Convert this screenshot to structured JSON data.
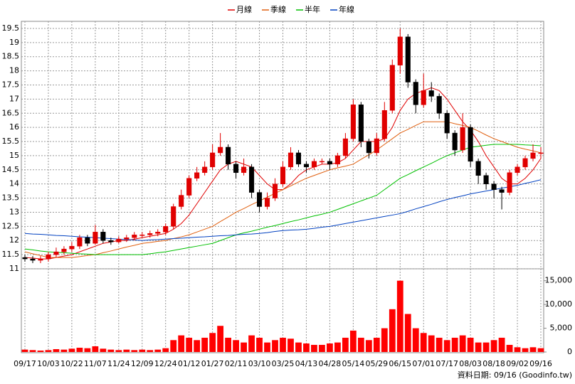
{
  "chart_data": {
    "type": "candlestick",
    "categories": [
      "09/17",
      null,
      null,
      "10/03",
      null,
      null,
      "10/22",
      null,
      null,
      "11/07",
      null,
      null,
      "11/24",
      null,
      null,
      "12/09",
      null,
      null,
      "12/24",
      null,
      null,
      "01/12",
      null,
      null,
      "01/27",
      null,
      null,
      "02/11",
      null,
      null,
      "03/10",
      null,
      null,
      "03/25",
      null,
      null,
      "04/13",
      null,
      null,
      "04/28",
      null,
      null,
      "05/14",
      null,
      null,
      "05/29",
      null,
      null,
      "06/15",
      null,
      null,
      "07/01",
      null,
      null,
      "07/17",
      null,
      null,
      "08/03",
      null,
      null,
      "08/18",
      null,
      null,
      "09/02",
      null,
      null,
      "09/16"
    ],
    "open": [
      11.4,
      11.35,
      11.3,
      11.35,
      11.5,
      11.6,
      11.7,
      11.8,
      12.1,
      11.9,
      12.3,
      12.0,
      11.95,
      12.05,
      12.1,
      12.2,
      12.2,
      12.25,
      12.3,
      12.5,
      13.2,
      13.6,
      14.2,
      14.4,
      14.6,
      15.1,
      15.3,
      14.7,
      14.4,
      14.6,
      13.7,
      13.2,
      13.5,
      14.0,
      14.6,
      15.1,
      14.7,
      14.6,
      14.8,
      14.8,
      14.7,
      15.0,
      15.6,
      16.8,
      15.5,
      15.1,
      15.6,
      16.6,
      18.2,
      19.2,
      17.6,
      16.8,
      17.3,
      17.1,
      16.5,
      15.8,
      15.2,
      16.0,
      14.8,
      14.3,
      14.0,
      13.8,
      13.7,
      14.4,
      14.6,
      14.9,
      15.1
    ],
    "high": [
      11.5,
      11.45,
      11.45,
      11.6,
      11.75,
      11.8,
      11.95,
      12.2,
      12.2,
      12.55,
      12.4,
      12.1,
      12.15,
      12.2,
      12.3,
      12.3,
      12.35,
      12.4,
      12.6,
      13.3,
      13.8,
      14.3,
      14.6,
      14.8,
      15.4,
      15.8,
      15.4,
      14.8,
      14.9,
      14.7,
      13.8,
      13.7,
      14.2,
      14.8,
      15.3,
      15.2,
      14.8,
      14.9,
      14.9,
      14.9,
      15.1,
      15.8,
      17.0,
      16.9,
      15.6,
      15.8,
      16.9,
      18.4,
      19.5,
      19.3,
      17.7,
      17.9,
      17.6,
      17.2,
      16.6,
      15.9,
      16.5,
      16.1,
      14.9,
      14.4,
      14.1,
      13.9,
      14.5,
      14.7,
      15.0,
      15.4,
      15.3
    ],
    "low": [
      11.25,
      11.2,
      11.2,
      11.25,
      11.4,
      11.5,
      11.6,
      11.7,
      11.8,
      11.85,
      11.9,
      11.85,
      11.9,
      11.95,
      12.0,
      12.1,
      12.1,
      12.15,
      12.2,
      12.4,
      13.1,
      13.5,
      14.1,
      14.3,
      14.5,
      15.0,
      14.5,
      14.2,
      14.3,
      13.5,
      13.0,
      13.1,
      13.4,
      13.9,
      14.5,
      14.6,
      14.4,
      14.5,
      14.7,
      14.5,
      14.6,
      14.9,
      15.5,
      15.3,
      14.9,
      15.0,
      15.5,
      16.5,
      17.9,
      17.4,
      16.5,
      16.7,
      16.9,
      16.3,
      15.6,
      15.0,
      15.1,
      14.6,
      14.0,
      13.8,
      13.5,
      13.1,
      13.6,
      14.3,
      14.5,
      14.8,
      14.9
    ],
    "close": [
      11.35,
      11.3,
      11.35,
      11.5,
      11.6,
      11.7,
      11.8,
      12.1,
      11.9,
      12.3,
      12.0,
      11.95,
      12.05,
      12.1,
      12.2,
      12.2,
      12.25,
      12.3,
      12.5,
      13.2,
      13.6,
      14.2,
      14.4,
      14.6,
      15.1,
      15.3,
      14.7,
      14.4,
      14.6,
      13.7,
      13.2,
      13.5,
      14.0,
      14.6,
      15.1,
      14.7,
      14.6,
      14.8,
      14.8,
      14.7,
      15.0,
      15.6,
      16.8,
      15.5,
      15.1,
      15.6,
      16.6,
      18.2,
      19.2,
      17.6,
      16.8,
      17.3,
      17.1,
      16.5,
      15.8,
      15.2,
      16.0,
      14.8,
      14.3,
      14.0,
      13.8,
      13.7,
      14.4,
      14.6,
      14.9,
      15.1,
      15.1
    ],
    "up_color": "#e00000",
    "down_color": "#000000",
    "series": [
      {
        "name": "月線",
        "color": "#e00000",
        "values": [
          11.4,
          11.38,
          11.35,
          11.35,
          11.4,
          11.45,
          11.5,
          11.6,
          11.7,
          11.8,
          11.9,
          11.95,
          12.0,
          12.0,
          12.05,
          12.1,
          12.15,
          12.2,
          12.25,
          12.4,
          12.6,
          12.9,
          13.3,
          13.7,
          14.1,
          14.5,
          14.7,
          14.8,
          14.7,
          14.6,
          14.3,
          14.0,
          13.8,
          13.8,
          14.0,
          14.3,
          14.5,
          14.6,
          14.7,
          14.7,
          14.75,
          14.9,
          15.2,
          15.5,
          15.5,
          15.5,
          15.6,
          16.0,
          16.6,
          17.0,
          17.2,
          17.3,
          17.4,
          17.3,
          17.0,
          16.6,
          16.2,
          15.9,
          15.5,
          15.0,
          14.6,
          14.2,
          14.0,
          14.0,
          14.2,
          14.5,
          14.9
        ]
      },
      {
        "name": "季線",
        "color": "#e06010",
        "values": [
          11.6,
          11.53,
          11.47,
          11.4,
          11.4,
          11.4,
          11.4,
          11.43,
          11.47,
          11.5,
          11.57,
          11.63,
          11.7,
          11.77,
          11.83,
          11.9,
          11.93,
          11.97,
          12.0,
          12.07,
          12.13,
          12.2,
          12.3,
          12.4,
          12.5,
          12.67,
          12.83,
          13.0,
          13.13,
          13.27,
          13.4,
          13.53,
          13.67,
          13.8,
          13.93,
          14.07,
          14.2,
          14.3,
          14.4,
          14.5,
          14.57,
          14.63,
          14.7,
          14.87,
          15.03,
          15.2,
          15.4,
          15.6,
          15.8,
          15.93,
          16.07,
          16.2,
          16.2,
          16.2,
          16.2,
          16.13,
          16.07,
          16.0,
          15.87,
          15.73,
          15.6,
          15.5,
          15.4,
          15.3,
          15.23,
          15.17,
          15.1
        ]
      },
      {
        "name": "半年",
        "color": "#00c000",
        "values": [
          11.7,
          11.67,
          11.63,
          11.6,
          11.58,
          11.57,
          11.55,
          11.53,
          11.52,
          11.5,
          11.5,
          11.5,
          11.5,
          11.5,
          11.5,
          11.5,
          11.53,
          11.57,
          11.6,
          11.65,
          11.7,
          11.75,
          11.8,
          11.85,
          11.9,
          12.0,
          12.1,
          12.2,
          12.27,
          12.33,
          12.4,
          12.47,
          12.53,
          12.6,
          12.67,
          12.73,
          12.8,
          12.87,
          12.93,
          13.0,
          13.1,
          13.2,
          13.3,
          13.4,
          13.5,
          13.6,
          13.8,
          14.0,
          14.2,
          14.33,
          14.47,
          14.6,
          14.73,
          14.87,
          15.0,
          15.1,
          15.2,
          15.3,
          15.33,
          15.37,
          15.4,
          15.4,
          15.4,
          15.4,
          15.38,
          15.37,
          15.35
        ]
      },
      {
        "name": "年線",
        "color": "#0040c0",
        "values": [
          12.25,
          12.23,
          12.22,
          12.2,
          12.18,
          12.17,
          12.15,
          12.13,
          12.12,
          12.1,
          12.08,
          12.07,
          12.05,
          12.03,
          12.02,
          12.0,
          12.02,
          12.03,
          12.05,
          12.07,
          12.08,
          12.1,
          12.12,
          12.13,
          12.15,
          12.17,
          12.18,
          12.2,
          12.22,
          12.23,
          12.25,
          12.28,
          12.32,
          12.35,
          12.37,
          12.38,
          12.4,
          12.43,
          12.47,
          12.5,
          12.55,
          12.6,
          12.65,
          12.7,
          12.75,
          12.8,
          12.85,
          12.9,
          12.95,
          13.03,
          13.12,
          13.2,
          13.28,
          13.37,
          13.45,
          13.52,
          13.58,
          13.65,
          13.7,
          13.75,
          13.8,
          13.85,
          13.9,
          13.95,
          14.02,
          14.08,
          14.15
        ]
      }
    ],
    "volume": {
      "color": "#ff0000",
      "axis": "y2",
      "values": [
        500,
        400,
        300,
        400,
        600,
        500,
        700,
        900,
        800,
        1200,
        700,
        500,
        400,
        500,
        400,
        500,
        400,
        500,
        800,
        2500,
        3500,
        3000,
        2500,
        3000,
        4000,
        5500,
        3000,
        2500,
        2000,
        3500,
        3000,
        2000,
        2500,
        3000,
        2800,
        2000,
        1800,
        1500,
        1500,
        1800,
        2000,
        3000,
        4500,
        3000,
        2500,
        3000,
        5000,
        9000,
        15000,
        8000,
        5000,
        4000,
        3500,
        3000,
        2500,
        3000,
        3500,
        3000,
        2000,
        2000,
        2500,
        3000,
        1500,
        1000,
        800,
        1000,
        800
      ]
    },
    "ylim": [
      11,
      19.75
    ],
    "yticks": [
      11,
      11.5,
      12,
      12.5,
      13,
      13.5,
      14,
      14.5,
      15,
      15.5,
      16,
      16.5,
      17,
      17.5,
      18,
      18.5,
      19,
      19.5
    ],
    "y2lim": [
      0,
      17500
    ],
    "y2ticks": [
      0,
      {
        "value": 5000,
        "label": "5,000"
      },
      {
        "value": 10000,
        "label": "10,000"
      },
      {
        "value": 15000,
        "label": "15,000"
      }
    ],
    "grid": true,
    "source": "資料日期: 09/16 (Goodinfo.tw)"
  }
}
